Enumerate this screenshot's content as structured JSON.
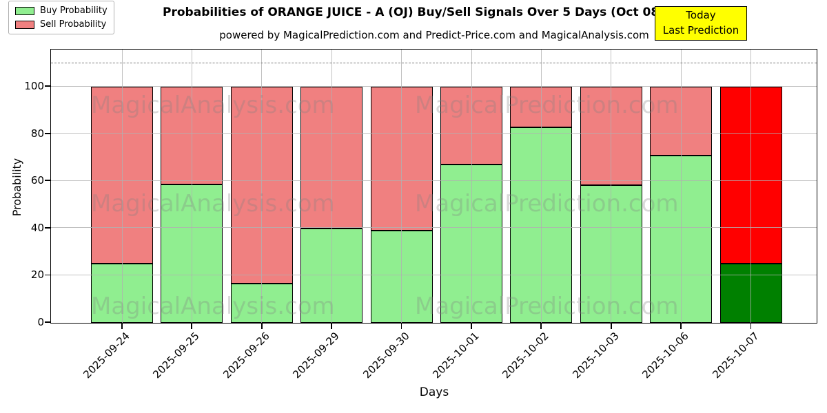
{
  "figure": {
    "title": "Probabilities of ORANGE JUICE - A (OJ) Buy/Sell Signals Over 5 Days (Oct 08)",
    "subtitle": "powered by MagicalPrediction.com and Predict-Price.com and MagicalAnalysis.com",
    "xlabel": "Days",
    "ylabel": "Probability"
  },
  "legend": {
    "items": [
      {
        "label": "Buy Probability",
        "color": "#90EE90"
      },
      {
        "label": "Sell Probability",
        "color": "#F08080"
      }
    ]
  },
  "annotation": {
    "line1": "Today",
    "line2": "Last Prediction",
    "bg_color": "#FFFF00",
    "border_color": "#000000"
  },
  "watermarks": {
    "texts": [
      "MagicalAnalysis.com",
      "MagicalPrediction.com"
    ]
  },
  "chart_data": {
    "type": "bar",
    "stacked": true,
    "title": "Probabilities of ORANGE JUICE - A (OJ) Buy/Sell Signals Over 5 Days (Oct 08)",
    "subtitle": "powered by MagicalPrediction.com and Predict-Price.com and MagicalAnalysis.com",
    "xlabel": "Days",
    "ylabel": "Probability",
    "categories": [
      "2025-09-24",
      "2025-09-25",
      "2025-09-26",
      "2025-09-29",
      "2025-09-30",
      "2025-10-01",
      "2025-10-02",
      "2025-10-03",
      "2025-10-06",
      "2025-10-07"
    ],
    "series": [
      {
        "name": "Buy Probability",
        "color": "#90EE90",
        "today_color": "#008000",
        "values": [
          25,
          58.5,
          16.5,
          40,
          39,
          67,
          82.7,
          58.3,
          71,
          25
        ]
      },
      {
        "name": "Sell Probability",
        "color": "#F08080",
        "today_color": "#FF0000",
        "values": [
          75,
          41.5,
          83.5,
          60,
          61,
          33,
          17.3,
          41.7,
          29,
          75
        ]
      }
    ],
    "today_index": 9,
    "ylim": [
      0,
      115.5
    ],
    "yticks": [
      0,
      20,
      40,
      60,
      80,
      100
    ],
    "dashed_line_y": 110,
    "grid": true,
    "legend_position": "upper left",
    "bar_edge_color": "#000000"
  }
}
